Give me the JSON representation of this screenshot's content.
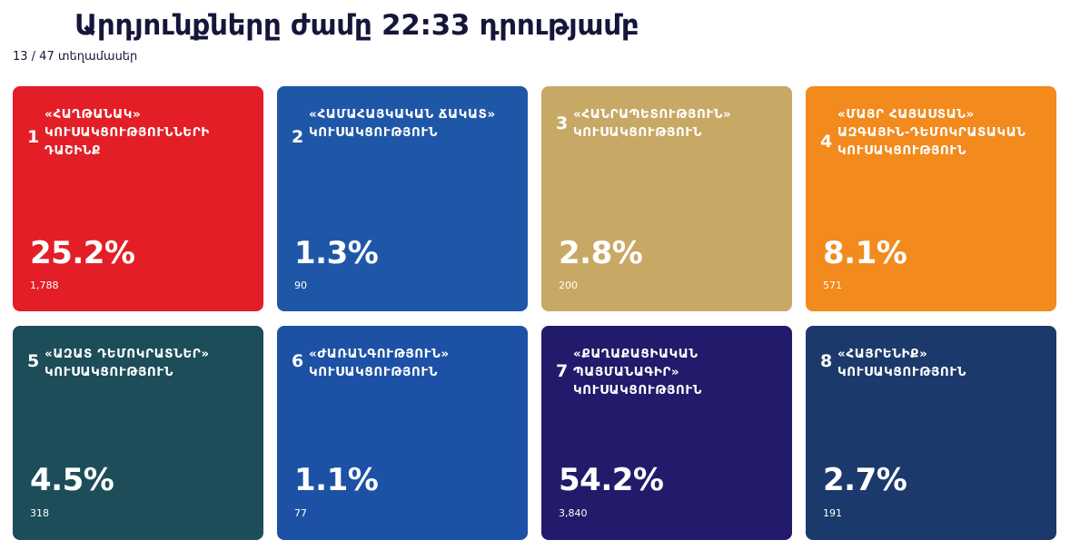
{
  "header": {
    "title": "Արդյունքները ժամը 22:33 դրությամբ",
    "precincts": "13 / 47 տեղամասեր"
  },
  "cards": [
    {
      "number": "1",
      "name": "«ՀԱՂԹԱՆԱԿ» ԿՈՒՍԱԿՑՈՒԹՅՈՒՆՆԵՐԻ ԴԱՇԻՆՔ",
      "percent": "25.2%",
      "votes": "1,788",
      "color": "#e31e26"
    },
    {
      "number": "2",
      "name": "«ՀԱՄԱՀԱՅԿԱԿԱՆ ՃԱԿԱՏ» ԿՈՒՍԱԿՑՈՒԹՅՈՒՆ",
      "percent": "1.3%",
      "votes": "90",
      "color": "#1f57a8"
    },
    {
      "number": "3",
      "name": "«ՀԱՆՐԱՊԵՏՈՒԹՅՈՒՆ» ԿՈՒՍԱԿՑՈՒԹՅՈՒՆ",
      "percent": "2.8%",
      "votes": "200",
      "color": "#c8a865"
    },
    {
      "number": "4",
      "name": "«ՄԱՅՐ ՀԱՅԱՍՏԱՆ» ԱԶԳԱՅԻՆ-ԴԵՄՈԿՐԱՏԱԿԱՆ ԿՈՒՍԱԿՑՈՒԹՅՈՒՆ",
      "percent": "8.1%",
      "votes": "571",
      "color": "#f28a1d"
    },
    {
      "number": "5",
      "name": "«ԱԶԱՏ ԴԵՄՈԿՐԱՏՆԵՐ» ԿՈՒՍԱԿՑՈՒԹՅՈՒՆ",
      "percent": "4.5%",
      "votes": "318",
      "color": "#1c4d59"
    },
    {
      "number": "6",
      "name": "«ԺԱՌԱՆԳՈՒԹՅՈՒՆ» ԿՈՒՍԱԿՑՈՒԹՅՈՒՆ",
      "percent": "1.1%",
      "votes": "77",
      "color": "#1d51a5"
    },
    {
      "number": "7",
      "name": "«ՔԱՂԱՔԱՑԻԱԿԱՆ ՊԱՅՄԱՆԱԳԻՐ» ԿՈՒՍԱԿՑՈՒԹՅՈՒՆ",
      "percent": "54.2%",
      "votes": "3,840",
      "color": "#221a6a"
    },
    {
      "number": "8",
      "name": "«ՀԱՅՐԵՆԻՔ» ԿՈՒՍԱԿՑՈՒԹՅՈՒՆ",
      "percent": "2.7%",
      "votes": "191",
      "color": "#1b3a6b"
    }
  ]
}
